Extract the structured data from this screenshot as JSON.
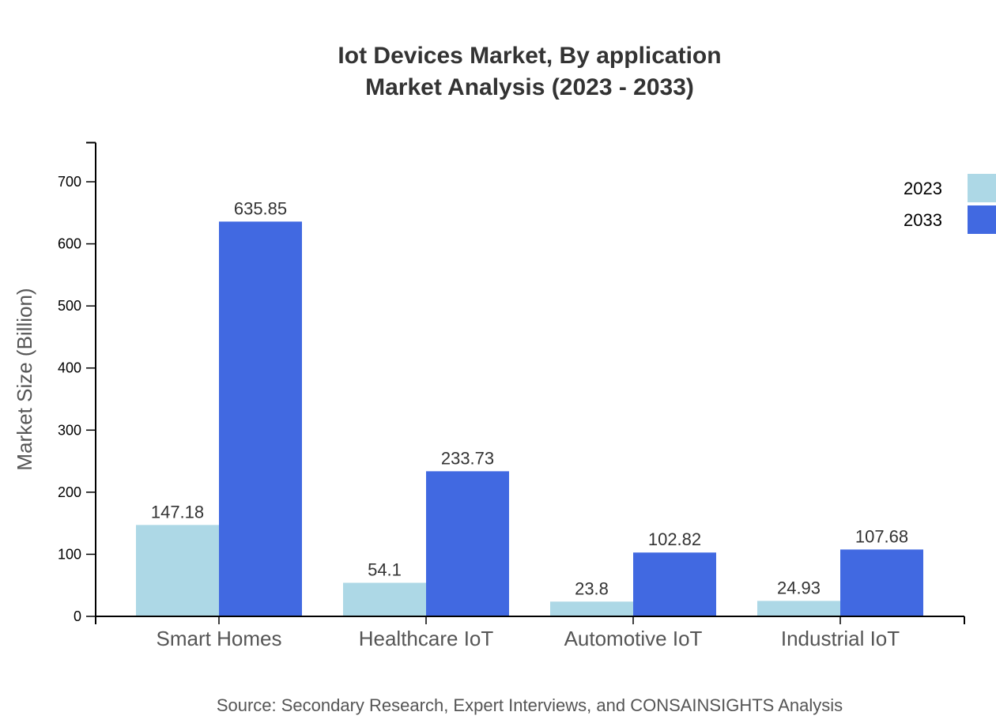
{
  "chart_data": {
    "type": "bar",
    "title": "Iot Devices Market, By application",
    "subtitle": "Market Analysis (2023 - 2033)",
    "xlabel": "",
    "ylabel": "Market Size (Billion)",
    "categories": [
      "Smart Homes",
      "Healthcare IoT",
      "Automotive IoT",
      "Industrial IoT"
    ],
    "series": [
      {
        "name": "2023",
        "color": "#add8e6",
        "values": [
          147.18,
          54.1,
          23.8,
          24.93
        ],
        "labels": [
          "147.18",
          "54.1",
          "23.8",
          "24.93"
        ]
      },
      {
        "name": "2033",
        "color": "#4169e1",
        "values": [
          635.85,
          233.73,
          102.82,
          107.68
        ],
        "labels": [
          "635.85",
          "233.73",
          "102.82",
          "107.68"
        ]
      }
    ],
    "ylim": [
      0,
      763.02
    ],
    "yticks": [
      "0",
      "100",
      "200",
      "300",
      "400",
      "500",
      "600",
      "700"
    ],
    "grid": false,
    "legend_position": "top-right",
    "source": "Source: Secondary Research, Expert Interviews, and CONSAINSIGHTS Analysis"
  }
}
